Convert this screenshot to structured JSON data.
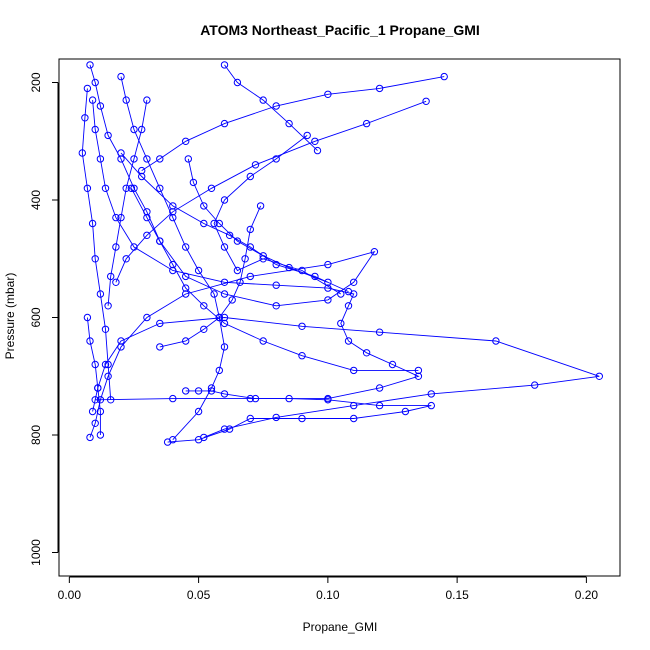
{
  "chart_data": {
    "type": "scatter",
    "title": "ATOM3 Northeast_Pacific_1 Propane_GMI",
    "xlabel": "Propane_GMI",
    "ylabel": "Pressure (mbar)",
    "xlim": [
      -0.004,
      0.213
    ],
    "ylim": [
      1040,
      160
    ],
    "y_reversed": true,
    "x_ticks": [
      {
        "value": 0.0,
        "label": "0.00"
      },
      {
        "value": 0.05,
        "label": "0.05"
      },
      {
        "value": 0.1,
        "label": "0.10"
      },
      {
        "value": 0.15,
        "label": "0.15"
      },
      {
        "value": 0.2,
        "label": "0.20"
      }
    ],
    "y_ticks": [
      {
        "value": 200,
        "label": "200"
      },
      {
        "value": 400,
        "label": "400"
      },
      {
        "value": 600,
        "label": "600"
      },
      {
        "value": 800,
        "label": "800"
      },
      {
        "value": 1000,
        "label": "1000"
      }
    ],
    "grid": false,
    "legend": "none",
    "color": "#0000ff",
    "series": [
      {
        "values": [
          [
            0.008,
            804
          ],
          [
            0.01,
            780
          ],
          [
            0.012,
            740
          ],
          [
            0.015,
            700
          ],
          [
            0.02,
            650
          ],
          [
            0.03,
            600
          ],
          [
            0.045,
            560
          ],
          [
            0.07,
            530
          ],
          [
            0.1,
            510
          ],
          [
            0.118,
            488
          ],
          [
            0.11,
            540
          ],
          [
            0.1,
            570
          ],
          [
            0.08,
            580
          ],
          [
            0.06,
            560
          ],
          [
            0.045,
            530
          ],
          [
            0.035,
            470
          ],
          [
            0.03,
            420
          ],
          [
            0.025,
            380
          ],
          [
            0.02,
            330
          ],
          [
            0.015,
            290
          ],
          [
            0.012,
            240
          ],
          [
            0.01,
            200
          ],
          [
            0.008,
            170
          ]
        ]
      },
      {
        "values": [
          [
            0.009,
            760
          ],
          [
            0.011,
            720
          ],
          [
            0.014,
            680
          ],
          [
            0.02,
            640
          ],
          [
            0.035,
            610
          ],
          [
            0.06,
            600
          ],
          [
            0.09,
            615
          ],
          [
            0.12,
            625
          ],
          [
            0.165,
            640
          ],
          [
            0.205,
            700
          ],
          [
            0.18,
            715
          ],
          [
            0.14,
            730
          ],
          [
            0.11,
            750
          ],
          [
            0.08,
            770
          ],
          [
            0.06,
            790
          ],
          [
            0.052,
            804
          ]
        ]
      },
      {
        "values": [
          [
            0.04,
            808
          ],
          [
            0.05,
            760
          ],
          [
            0.055,
            720
          ],
          [
            0.058,
            690
          ],
          [
            0.06,
            650
          ],
          [
            0.058,
            600
          ],
          [
            0.056,
            560
          ],
          [
            0.05,
            520
          ],
          [
            0.045,
            480
          ],
          [
            0.04,
            430
          ],
          [
            0.035,
            380
          ],
          [
            0.03,
            330
          ],
          [
            0.025,
            280
          ],
          [
            0.022,
            230
          ],
          [
            0.02,
            190
          ]
        ]
      },
      {
        "values": [
          [
            0.01,
            740
          ],
          [
            0.04,
            738
          ],
          [
            0.07,
            738
          ],
          [
            0.1,
            738
          ],
          [
            0.12,
            720
          ],
          [
            0.135,
            700
          ],
          [
            0.125,
            680
          ],
          [
            0.115,
            660
          ],
          [
            0.108,
            640
          ],
          [
            0.105,
            610
          ],
          [
            0.108,
            580
          ],
          [
            0.11,
            560
          ],
          [
            0.1,
            550
          ],
          [
            0.08,
            545
          ],
          [
            0.06,
            540
          ],
          [
            0.04,
            520
          ],
          [
            0.025,
            480
          ],
          [
            0.018,
            430
          ],
          [
            0.014,
            380
          ],
          [
            0.012,
            330
          ],
          [
            0.01,
            280
          ],
          [
            0.009,
            230
          ]
        ]
      },
      {
        "values": [
          [
            0.038,
            812
          ],
          [
            0.05,
            808
          ],
          [
            0.062,
            790
          ],
          [
            0.07,
            772
          ],
          [
            0.09,
            772
          ],
          [
            0.11,
            772
          ],
          [
            0.13,
            760
          ],
          [
            0.14,
            750
          ],
          [
            0.12,
            750
          ],
          [
            0.1,
            740
          ],
          [
            0.085,
            738
          ],
          [
            0.072,
            738
          ],
          [
            0.06,
            730
          ],
          [
            0.055,
            725
          ],
          [
            0.05,
            725
          ],
          [
            0.045,
            725
          ]
        ]
      },
      {
        "values": [
          [
            0.092,
            290
          ],
          [
            0.08,
            330
          ],
          [
            0.07,
            360
          ],
          [
            0.06,
            400
          ],
          [
            0.056,
            440
          ],
          [
            0.06,
            480
          ],
          [
            0.065,
            520
          ],
          [
            0.075,
            500
          ],
          [
            0.09,
            520
          ],
          [
            0.105,
            560
          ]
        ]
      },
      {
        "values": [
          [
            0.145,
            190
          ],
          [
            0.12,
            210
          ],
          [
            0.1,
            220
          ],
          [
            0.08,
            240
          ],
          [
            0.06,
            270
          ],
          [
            0.045,
            300
          ],
          [
            0.035,
            330
          ],
          [
            0.028,
            350
          ]
        ]
      },
      {
        "values": [
          [
            0.138,
            232
          ],
          [
            0.115,
            270
          ],
          [
            0.095,
            300
          ],
          [
            0.072,
            340
          ],
          [
            0.055,
            380
          ],
          [
            0.04,
            420
          ],
          [
            0.03,
            460
          ],
          [
            0.022,
            500
          ],
          [
            0.018,
            540
          ]
        ]
      },
      {
        "values": [
          [
            0.096,
            316
          ],
          [
            0.085,
            270
          ],
          [
            0.075,
            230
          ],
          [
            0.065,
            200
          ],
          [
            0.06,
            170
          ]
        ]
      },
      {
        "values": [
          [
            0.02,
            320
          ],
          [
            0.028,
            360
          ],
          [
            0.04,
            410
          ],
          [
            0.052,
            440
          ],
          [
            0.062,
            460
          ],
          [
            0.07,
            480
          ],
          [
            0.08,
            510
          ],
          [
            0.095,
            530
          ],
          [
            0.108,
            556
          ]
        ]
      },
      {
        "values": [
          [
            0.007,
            210
          ],
          [
            0.006,
            260
          ],
          [
            0.005,
            320
          ],
          [
            0.007,
            380
          ],
          [
            0.009,
            440
          ],
          [
            0.01,
            500
          ],
          [
            0.012,
            560
          ],
          [
            0.014,
            620
          ],
          [
            0.015,
            680
          ],
          [
            0.016,
            740
          ]
        ]
      },
      {
        "values": [
          [
            0.074,
            410
          ],
          [
            0.07,
            450
          ],
          [
            0.068,
            500
          ],
          [
            0.066,
            540
          ],
          [
            0.063,
            570
          ],
          [
            0.058,
            600
          ],
          [
            0.052,
            620
          ],
          [
            0.045,
            640
          ],
          [
            0.035,
            650
          ]
        ]
      },
      {
        "values": [
          [
            0.024,
            380
          ],
          [
            0.03,
            430
          ],
          [
            0.035,
            470
          ],
          [
            0.04,
            510
          ],
          [
            0.045,
            550
          ],
          [
            0.052,
            580
          ],
          [
            0.06,
            610
          ],
          [
            0.075,
            640
          ],
          [
            0.09,
            665
          ],
          [
            0.11,
            690
          ],
          [
            0.135,
            690
          ]
        ]
      },
      {
        "values": [
          [
            0.03,
            230
          ],
          [
            0.028,
            280
          ],
          [
            0.025,
            330
          ],
          [
            0.022,
            380
          ],
          [
            0.02,
            430
          ],
          [
            0.018,
            480
          ],
          [
            0.016,
            530
          ],
          [
            0.015,
            580
          ]
        ]
      },
      {
        "values": [
          [
            0.046,
            330
          ],
          [
            0.048,
            370
          ],
          [
            0.052,
            410
          ],
          [
            0.058,
            440
          ],
          [
            0.065,
            470
          ],
          [
            0.075,
            495
          ],
          [
            0.085,
            515
          ],
          [
            0.1,
            540
          ]
        ]
      },
      {
        "values": [
          [
            0.007,
            600
          ],
          [
            0.008,
            640
          ],
          [
            0.01,
            680
          ],
          [
            0.011,
            720
          ],
          [
            0.012,
            760
          ],
          [
            0.012,
            800
          ]
        ]
      }
    ]
  }
}
